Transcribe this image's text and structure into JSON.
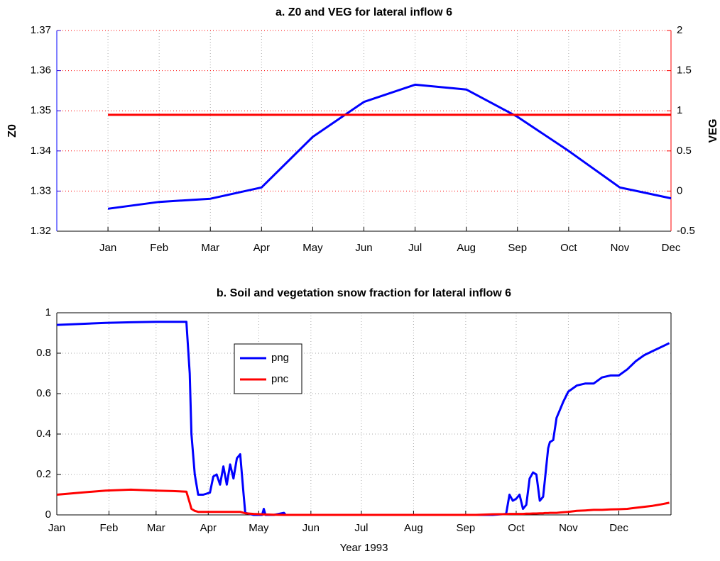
{
  "chart_data": [
    {
      "type": "line",
      "title": "a. Z0 and VEG for lateral inflow 6",
      "categories": [
        "Jan",
        "Feb",
        "Mar",
        "Apr",
        "May",
        "Jun",
        "Jul",
        "Aug",
        "Sep",
        "Oct",
        "Nov",
        "Dec"
      ],
      "ylabel": "Z0",
      "y2label": "VEG",
      "ylim": [
        1.32,
        1.37
      ],
      "yticks": [
        1.32,
        1.33,
        1.34,
        1.35,
        1.36,
        1.37
      ],
      "y2lim": [
        -0.5,
        2
      ],
      "y2ticks": [
        -0.5,
        0,
        0.5,
        1,
        1.5,
        2
      ],
      "grid": true,
      "series": [
        {
          "name": "Z0",
          "color": "#0000ff",
          "values": [
            1.3256,
            1.3273,
            1.3281,
            1.3309,
            1.3435,
            1.3522,
            1.3565,
            1.3553,
            1.3485,
            1.34,
            1.3309,
            1.3282
          ]
        },
        {
          "name": "VEG",
          "color": "#ff0000",
          "axis": "y2",
          "values": [
            0.95,
            0.95,
            0.95,
            0.95,
            0.95,
            0.95,
            0.95,
            0.95,
            0.95,
            0.95,
            0.95,
            0.95
          ]
        }
      ]
    },
    {
      "type": "line",
      "title": "b. Soil and vegetation snow fraction for lateral inflow 6",
      "xlabel": "Year 1993",
      "x": [
        1,
        15,
        30,
        45,
        60,
        70,
        78,
        80,
        81,
        83,
        85,
        88,
        92,
        94,
        96,
        98,
        100,
        102,
        104,
        106,
        108,
        110,
        112,
        113,
        118,
        123,
        124,
        125,
        130,
        136,
        137,
        150,
        200,
        250,
        260,
        268,
        270,
        272,
        274,
        276,
        278,
        280,
        282,
        284,
        286,
        288,
        290,
        291,
        293,
        294,
        296,
        298,
        300,
        302,
        305,
        310,
        315,
        320,
        325,
        330,
        335,
        340,
        345,
        350,
        355,
        360,
        365
      ],
      "xlim": [
        1,
        366
      ],
      "xticks": [
        {
          "value": 1,
          "label": "Jan"
        },
        {
          "value": 32,
          "label": "Feb"
        },
        {
          "value": 60,
          "label": "Mar"
        },
        {
          "value": 91,
          "label": "Apr"
        },
        {
          "value": 121,
          "label": "May"
        },
        {
          "value": 152,
          "label": "Jun"
        },
        {
          "value": 182,
          "label": "Jul"
        },
        {
          "value": 213,
          "label": "Aug"
        },
        {
          "value": 244,
          "label": "Sep"
        },
        {
          "value": 274,
          "label": "Oct"
        },
        {
          "value": 305,
          "label": "Nov"
        },
        {
          "value": 335,
          "label": "Dec"
        }
      ],
      "ylim": [
        0,
        1
      ],
      "yticks": [
        0,
        0.2,
        0.4,
        0.6,
        0.8,
        1
      ],
      "grid": true,
      "series": [
        {
          "name": "png",
          "color": "#0000ff",
          "values": [
            0.94,
            0.945,
            0.95,
            0.953,
            0.955,
            0.955,
            0.955,
            0.7,
            0.4,
            0.2,
            0.1,
            0.1,
            0.11,
            0.19,
            0.2,
            0.15,
            0.24,
            0.15,
            0.25,
            0.18,
            0.28,
            0.3,
            0.1,
            0.01,
            0,
            0,
            0.03,
            0,
            0,
            0.01,
            0,
            0,
            0,
            0,
            0,
            0.005,
            0.1,
            0.07,
            0.08,
            0.1,
            0.03,
            0.05,
            0.18,
            0.21,
            0.2,
            0.07,
            0.09,
            0.17,
            0.33,
            0.36,
            0.37,
            0.48,
            0.52,
            0.56,
            0.61,
            0.64,
            0.65,
            0.65,
            0.68,
            0.69,
            0.69,
            0.72,
            0.76,
            0.79,
            0.81,
            0.83,
            0.85
          ]
        },
        {
          "name": "pnc",
          "color": "#ff0000",
          "values": [
            0.1,
            0.11,
            0.12,
            0.125,
            0.12,
            0.118,
            0.115,
            0.06,
            0.03,
            0.02,
            0.015,
            0.015,
            0.015,
            0.015,
            0.015,
            0.015,
            0.015,
            0.015,
            0.015,
            0.015,
            0.015,
            0.015,
            0.01,
            0.008,
            0.005,
            0.003,
            0.002,
            0.002,
            0.001,
            0,
            0,
            0,
            0,
            0,
            0.003,
            0.004,
            0.005,
            0.005,
            0.005,
            0.005,
            0.005,
            0.006,
            0.006,
            0.007,
            0.007,
            0.008,
            0.008,
            0.009,
            0.009,
            0.01,
            0.01,
            0.01,
            0.012,
            0.013,
            0.015,
            0.02,
            0.022,
            0.025,
            0.025,
            0.027,
            0.028,
            0.03,
            0.035,
            0.04,
            0.045,
            0.052,
            0.06
          ]
        }
      ]
    }
  ]
}
